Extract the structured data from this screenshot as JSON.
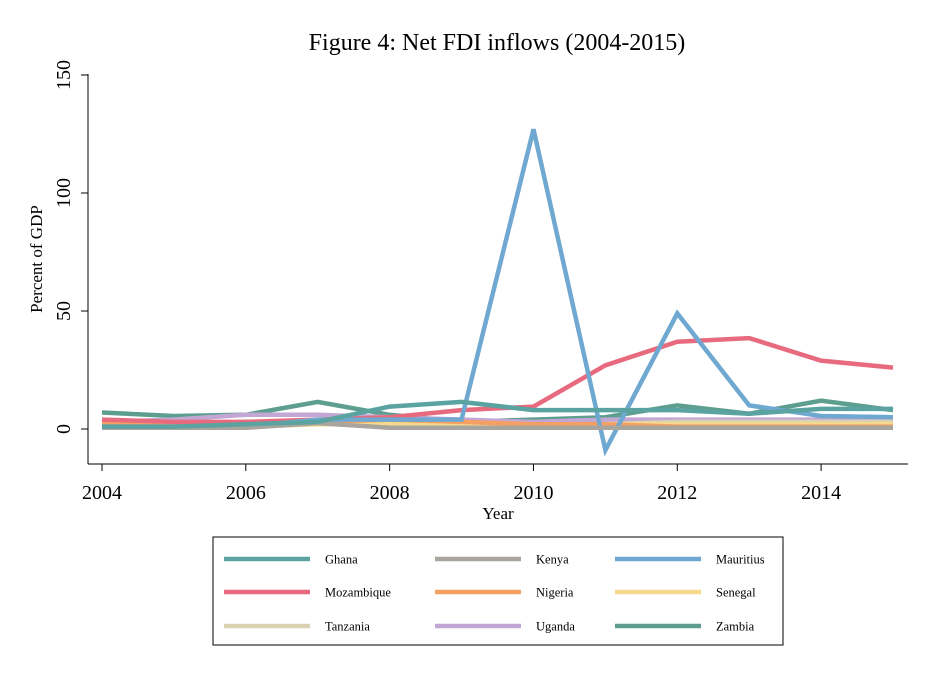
{
  "chart_data": {
    "type": "line",
    "title": "Figure 4: Net FDI inflows (2004-2015)",
    "xlabel": "Year",
    "ylabel": "Percent of GDP",
    "xlim": [
      2004,
      2015
    ],
    "ylim": [
      -15,
      150
    ],
    "xticks": [
      "2004",
      "2006",
      "2008",
      "2010",
      "2012",
      "2014"
    ],
    "yticks": [
      "0",
      "50",
      "100",
      "150"
    ],
    "grid": false,
    "legend_position": "bottom",
    "x": [
      2004,
      2005,
      2006,
      2007,
      2008,
      2009,
      2010,
      2011,
      2012,
      2013,
      2014,
      2015
    ],
    "series": [
      {
        "name": "Ghana",
        "color": "#5aa3a0",
        "values": [
          1,
          1,
          2,
          3,
          9.5,
          11.5,
          8,
          8,
          8,
          6.5,
          8.5,
          8.5
        ]
      },
      {
        "name": "Kenya",
        "color": "#a8a49e",
        "values": [
          0.5,
          0.5,
          0.5,
          2.5,
          0.5,
          0.5,
          0.5,
          0.5,
          0.5,
          0.5,
          0.5,
          0.5
        ]
      },
      {
        "name": "Mauritius",
        "color": "#6fa8d0",
        "values": [
          1,
          1,
          1,
          4,
          4,
          4,
          127,
          -9,
          49,
          10,
          5.5,
          5
        ]
      },
      {
        "name": "Mozambique",
        "color": "#e86a7e",
        "values": [
          4,
          3,
          3,
          4,
          5,
          8,
          9.5,
          27,
          37,
          38.5,
          29,
          26
        ]
      },
      {
        "name": "Nigeria",
        "color": "#f5a062",
        "values": [
          2,
          2,
          3,
          3,
          4,
          3,
          2,
          2,
          1,
          1,
          1,
          1
        ]
      },
      {
        "name": "Senegal",
        "color": "#f7d98e",
        "values": [
          1,
          1,
          1,
          2,
          2,
          2,
          2,
          2,
          2,
          2,
          2,
          2
        ]
      },
      {
        "name": "Tanzania",
        "color": "#dad2b2",
        "values": [
          2,
          2,
          2,
          2,
          2,
          2,
          2,
          2,
          3,
          3,
          3,
          3
        ]
      },
      {
        "name": "Uganda",
        "color": "#c2a6d4",
        "values": [
          3,
          4,
          6,
          6,
          5,
          4,
          3,
          4,
          4,
          4,
          4,
          4
        ]
      },
      {
        "name": "Zambia",
        "color": "#5e9e8e",
        "values": [
          7,
          5.5,
          6,
          11.5,
          6,
          3,
          4,
          5,
          10,
          6.5,
          12,
          8
        ]
      }
    ]
  }
}
